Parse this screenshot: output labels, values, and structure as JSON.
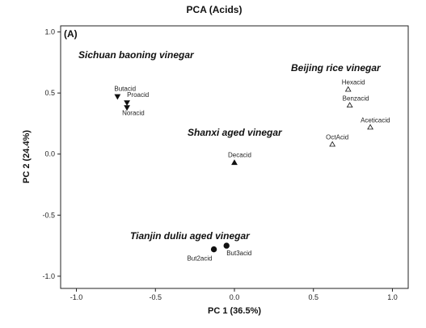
{
  "chart_data": {
    "type": "scatter",
    "title": "PCA  (Acids)",
    "panel_label": "(A)",
    "xlabel": "PC 1 (36.5%)",
    "ylabel": "PC 2 (24.4%)",
    "xlim": [
      -1.1,
      1.1
    ],
    "ylim": [
      -1.1,
      1.05
    ],
    "x_ticks": [
      -1.0,
      -0.5,
      0.0,
      0.5,
      1.0
    ],
    "x_tick_labels": [
      "-1.0",
      "-0.5",
      "0.0",
      "0.5",
      "1.0"
    ],
    "y_ticks": [
      -1.0,
      -0.5,
      0.0,
      0.5,
      1.0
    ],
    "y_tick_labels": [
      "-1.0",
      "-0.5",
      "0.0",
      "0.5",
      "1.0"
    ],
    "grid": false,
    "groups": [
      {
        "name": "Sichuan baoning vinegar",
        "marker": "triangle-down",
        "filled": true,
        "points": [
          {
            "label": "Proacid",
            "x": -0.68,
            "y": 0.42
          },
          {
            "label": "Butacid",
            "x": -0.74,
            "y": 0.47
          },
          {
            "label": "Noracid",
            "x": -0.68,
            "y": 0.38
          }
        ]
      },
      {
        "name": "Beijing rice vinegar",
        "marker": "triangle-up",
        "filled": false,
        "points": [
          {
            "label": "Hexacid",
            "x": 0.72,
            "y": 0.53
          },
          {
            "label": "Benzacid",
            "x": 0.73,
            "y": 0.4
          },
          {
            "label": "Aceticacid",
            "x": 0.86,
            "y": 0.22
          },
          {
            "label": "OctAcid",
            "x": 0.62,
            "y": 0.08
          }
        ]
      },
      {
        "name": "Shanxi aged vinegar",
        "marker": "triangle-up",
        "filled": true,
        "points": [
          {
            "label": "Decacid",
            "x": 0.0,
            "y": -0.07
          }
        ]
      },
      {
        "name": "Tianjin duliu aged vinegar",
        "marker": "circle",
        "filled": true,
        "points": [
          {
            "label": "But2acid",
            "x": -0.13,
            "y": -0.78
          },
          {
            "label": "But3acid",
            "x": -0.05,
            "y": -0.75
          }
        ]
      }
    ]
  }
}
